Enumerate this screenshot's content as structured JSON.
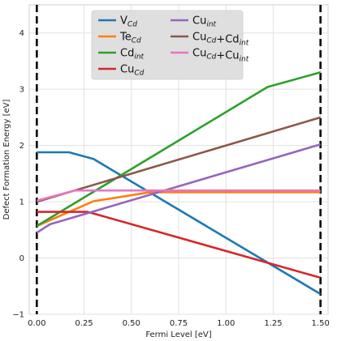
{
  "chart_data": {
    "type": "line",
    "title": "",
    "xlabel": "Fermi Level [eV]",
    "ylabel": "Defect Formation Energy [eV]",
    "xlim": [
      -0.04,
      1.54
    ],
    "ylim": [
      -1,
      4.5
    ],
    "xticks": [
      0.0,
      0.25,
      0.5,
      0.75,
      1.0,
      1.25,
      1.5
    ],
    "xtick_labels": [
      "0.00",
      "0.25",
      "0.50",
      "0.75",
      "1.00",
      "1.25",
      "1.50"
    ],
    "yticks": [
      -1,
      0,
      1,
      2,
      3,
      4
    ],
    "ytick_labels": [
      "−1",
      "0",
      "1",
      "2",
      "3",
      "4"
    ],
    "grid": true,
    "legend": "top-center, 2 columns",
    "vertical_dashed_lines": [
      0.0,
      1.5
    ],
    "series": [
      {
        "name": "V_Cd",
        "label_main": "V",
        "label_sub": "Cd",
        "color": "#1f77b4",
        "x": [
          0.0,
          0.17,
          0.3,
          1.5
        ],
        "y": [
          1.88,
          1.88,
          1.76,
          -0.64
        ]
      },
      {
        "name": "Te_Cd",
        "label_main": "Te",
        "label_sub": "Cd",
        "color": "#ff7f0e",
        "x": [
          0.0,
          0.3,
          0.6,
          1.5
        ],
        "y": [
          0.57,
          1.01,
          1.17,
          1.17
        ]
      },
      {
        "name": "Cd_int",
        "label_main": "Cd",
        "label_sub": "int",
        "color": "#2ca02c",
        "x": [
          0.0,
          1.22,
          1.5
        ],
        "y": [
          0.57,
          3.04,
          3.3
        ]
      },
      {
        "name": "Cu_Cd",
        "label_main": "Cu",
        "label_sub": "Cd",
        "color": "#d62728",
        "x": [
          0.0,
          0.27,
          1.5
        ],
        "y": [
          0.82,
          0.82,
          -0.35
        ]
      },
      {
        "name": "Cu_int",
        "label_main": "Cu",
        "label_sub": "int",
        "color": "#9467bd",
        "x": [
          0.0,
          0.07,
          1.5
        ],
        "y": [
          0.45,
          0.6,
          2.02
        ]
      },
      {
        "name": "Cu_Cd+Cd_int",
        "label_main": "Cu",
        "label_sub": "Cd",
        "label_main2": "+Cd",
        "label_sub2": "int",
        "color": "#8c564b",
        "x": [
          0.0,
          1.5
        ],
        "y": [
          1.0,
          2.5
        ]
      },
      {
        "name": "Cu_Cd+Cu_int",
        "label_main": "Cu",
        "label_sub": "Cd",
        "label_main2": "+Cu",
        "label_sub2": "int",
        "color": "#e377c2",
        "x": [
          0.0,
          0.2,
          1.5
        ],
        "y": [
          1.02,
          1.2,
          1.2
        ]
      }
    ]
  }
}
